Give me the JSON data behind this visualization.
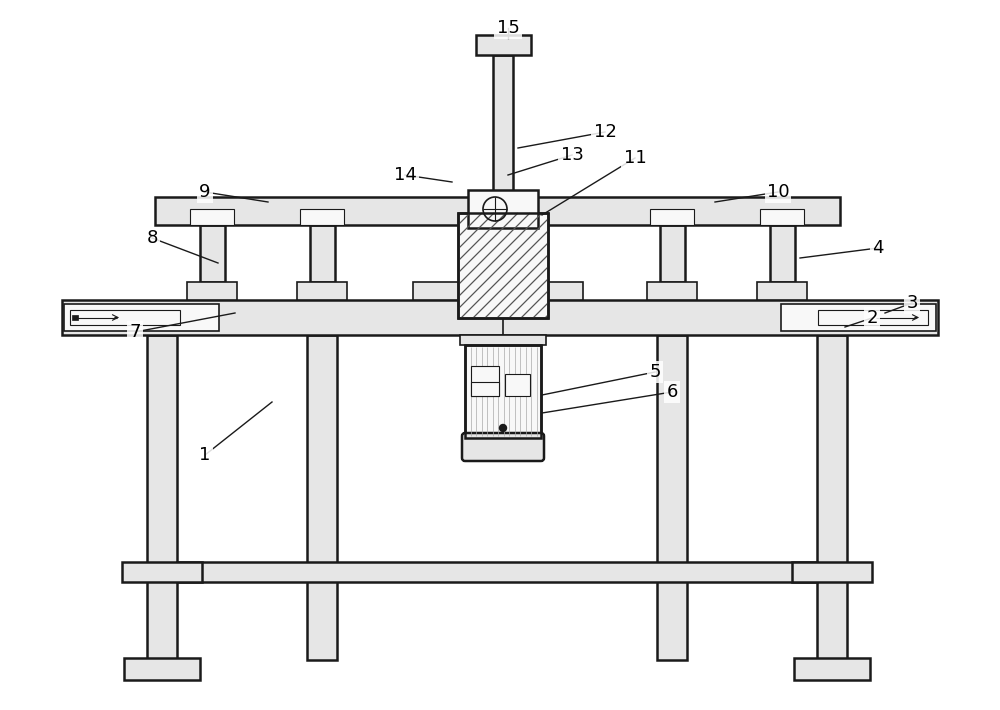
{
  "background_color": "#ffffff",
  "line_color": "#1a1a1a",
  "fig_width": 10.0,
  "fig_height": 7.1,
  "label_fontsize": 13,
  "labels": {
    "1": [
      2.05,
      2.55,
      2.72,
      3.08
    ],
    "2": [
      8.72,
      3.92,
      8.45,
      3.83
    ],
    "3": [
      9.12,
      4.07,
      8.85,
      3.97
    ],
    "4": [
      8.78,
      4.62,
      8.0,
      4.52
    ],
    "5": [
      6.55,
      3.38,
      5.42,
      3.15
    ],
    "6": [
      6.72,
      3.18,
      5.42,
      2.97
    ],
    "7": [
      1.35,
      3.78,
      2.35,
      3.97
    ],
    "8": [
      1.52,
      4.72,
      2.18,
      4.47
    ],
    "9": [
      2.05,
      5.18,
      2.68,
      5.08
    ],
    "10": [
      7.78,
      5.18,
      7.15,
      5.08
    ],
    "11": [
      6.35,
      5.52,
      5.42,
      4.95
    ],
    "12": [
      6.05,
      5.78,
      5.18,
      5.62
    ],
    "13": [
      5.72,
      5.55,
      5.08,
      5.35
    ],
    "14": [
      4.05,
      5.35,
      4.52,
      5.28
    ],
    "15": [
      5.08,
      6.82,
      5.08,
      6.72
    ]
  }
}
